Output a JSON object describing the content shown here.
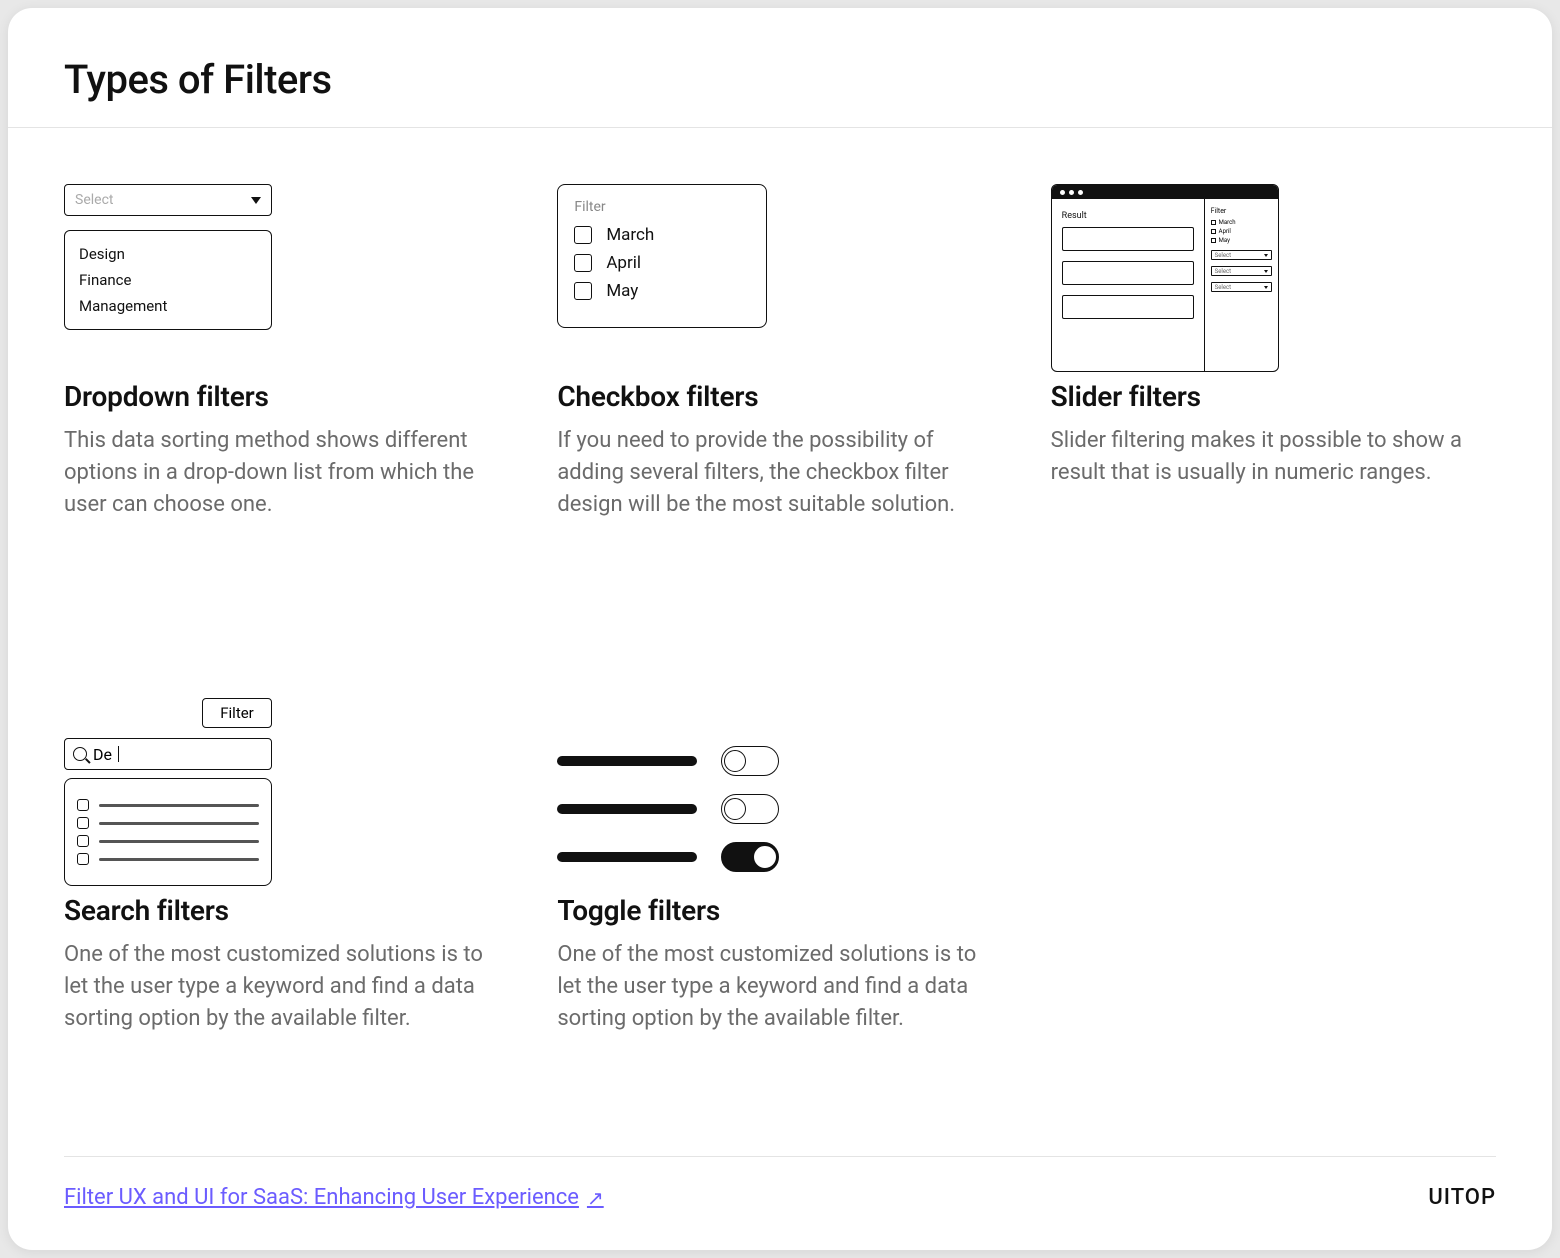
{
  "page_title": "Types of Filters",
  "cards": {
    "dropdown": {
      "title": "Dropdown filters",
      "desc": "This data sorting method shows different options in a drop-down list from which the user can choose one.",
      "select_placeholder": "Select",
      "options": [
        "Design",
        "Finance",
        "Management"
      ]
    },
    "checkbox": {
      "title": "Checkbox filters",
      "desc": "If you need to provide the possibility of adding several filters, the checkbox filter design will be the most suitable solution.",
      "panel_label": "Filter",
      "options": [
        "March",
        "April",
        "May"
      ]
    },
    "slider": {
      "title": "Slider filters",
      "desc": "Slider filtering makes it possible to show a result that is usually in numeric ranges.",
      "result_label": "Result",
      "side_label": "Filter",
      "months": [
        "March",
        "April",
        "May"
      ],
      "select_label": "Select"
    },
    "search": {
      "title": "Search filters",
      "desc": "One of the most customized solutions is to let the user type a keyword and find a data sorting option by the available filter.",
      "filter_btn": "Filter",
      "search_value": "De"
    },
    "toggle": {
      "title": "Toggle filters",
      "desc": "One of the most customized solutions is to let the user type a keyword and find a data sorting option by the available filter.",
      "rows": [
        {
          "on": false
        },
        {
          "on": false
        },
        {
          "on": true
        }
      ]
    }
  },
  "footer": {
    "link_text": "Filter UX and UI for SaaS: Enhancing User Experience",
    "brand": "UITOP"
  },
  "colors": {
    "text": "#111111",
    "muted": "#6b6b6b",
    "link": "#6b5cff",
    "background": "#ffffff",
    "divider": "#e4e4e4"
  }
}
